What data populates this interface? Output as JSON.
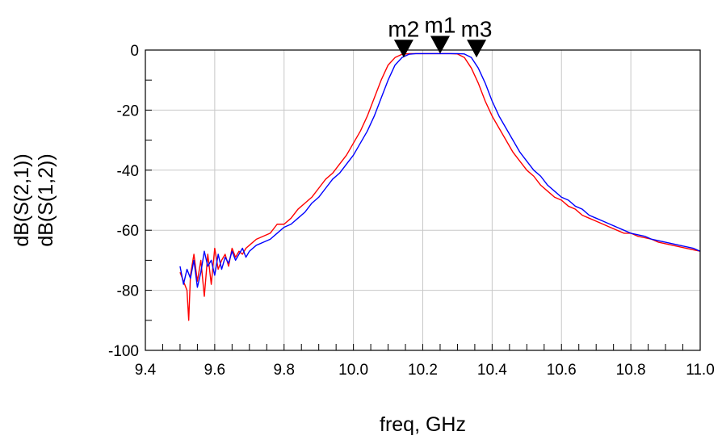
{
  "chart_data": {
    "type": "line",
    "xlabel": "freq, GHz",
    "ylabel_lines": [
      {
        "text": "dB(S(2,1))",
        "color": "#0000ff"
      },
      {
        "text": "dB(S(1,2))",
        "color": "#ff0000"
      }
    ],
    "xlim": [
      9.4,
      11.0
    ],
    "ylim": [
      -100,
      0
    ],
    "x_ticks": [
      9.4,
      9.6,
      9.8,
      10.0,
      10.2,
      10.4,
      10.6,
      10.8,
      11.0
    ],
    "x_tick_labels": [
      "9.4",
      "9.6",
      "9.8",
      "10.0",
      "10.2",
      "10.4",
      "10.6",
      "10.8",
      "11.0"
    ],
    "y_ticks": [
      0,
      -20,
      -40,
      -60,
      -80,
      -100
    ],
    "y_tick_labels": [
      "0",
      "-20",
      "-40",
      "-60",
      "-80",
      "-100"
    ],
    "grid": true,
    "markers": [
      {
        "name": "m2",
        "x": 10.145,
        "y": -2.5
      },
      {
        "name": "m1",
        "x": 10.25,
        "y": -1.2
      },
      {
        "name": "m3",
        "x": 10.355,
        "y": -2.5
      }
    ],
    "series": [
      {
        "name": "dB(S(2,1))",
        "color": "#0000ff",
        "x": [
          9.5,
          9.51,
          9.52,
          9.53,
          9.54,
          9.55,
          9.56,
          9.57,
          9.58,
          9.59,
          9.6,
          9.61,
          9.62,
          9.63,
          9.64,
          9.65,
          9.66,
          9.67,
          9.68,
          9.69,
          9.7,
          9.72,
          9.74,
          9.76,
          9.78,
          9.8,
          9.82,
          9.84,
          9.86,
          9.88,
          9.9,
          9.92,
          9.94,
          9.96,
          9.98,
          10.0,
          10.02,
          10.04,
          10.06,
          10.08,
          10.1,
          10.12,
          10.14,
          10.16,
          10.18,
          10.2,
          10.22,
          10.24,
          10.26,
          10.28,
          10.3,
          10.32,
          10.34,
          10.36,
          10.38,
          10.4,
          10.42,
          10.44,
          10.46,
          10.48,
          10.5,
          10.52,
          10.54,
          10.56,
          10.58,
          10.6,
          10.62,
          10.64,
          10.66,
          10.68,
          10.7,
          10.72,
          10.74,
          10.76,
          10.78,
          10.8,
          10.82,
          10.84,
          10.86,
          10.88,
          10.9,
          10.92,
          10.94,
          10.96,
          10.98,
          11.0
        ],
        "y": [
          -72,
          -78,
          -73,
          -76,
          -70,
          -79,
          -74,
          -67,
          -72,
          -70,
          -75,
          -68,
          -73,
          -69,
          -71,
          -67,
          -70,
          -68,
          -66,
          -69,
          -67,
          -65,
          -64,
          -63,
          -61,
          -59,
          -58,
          -56,
          -54,
          -51,
          -49,
          -46,
          -43,
          -41,
          -38,
          -35,
          -31,
          -27,
          -22,
          -16,
          -10,
          -5,
          -2.5,
          -1.4,
          -1.2,
          -1.2,
          -1.2,
          -1.2,
          -1.2,
          -1.2,
          -1.2,
          -1.3,
          -2.5,
          -6,
          -11,
          -17,
          -22,
          -26,
          -30,
          -34,
          -37,
          -40,
          -42,
          -45,
          -47,
          -49,
          -50,
          -52,
          -53,
          -55,
          -56,
          -57,
          -58,
          -59,
          -60,
          -61,
          -61.5,
          -62,
          -63,
          -63.5,
          -64,
          -64.5,
          -65,
          -65.5,
          -66,
          -67
        ]
      },
      {
        "name": "dB(S(1,2))",
        "color": "#ff0000",
        "x": [
          9.5,
          9.51,
          9.52,
          9.525,
          9.53,
          9.54,
          9.55,
          9.56,
          9.57,
          9.58,
          9.59,
          9.6,
          9.61,
          9.62,
          9.63,
          9.64,
          9.65,
          9.66,
          9.67,
          9.68,
          9.69,
          9.7,
          9.72,
          9.74,
          9.76,
          9.78,
          9.8,
          9.82,
          9.84,
          9.86,
          9.88,
          9.9,
          9.92,
          9.94,
          9.96,
          9.98,
          10.0,
          10.02,
          10.04,
          10.06,
          10.08,
          10.1,
          10.12,
          10.14,
          10.16,
          10.18,
          10.2,
          10.22,
          10.24,
          10.26,
          10.28,
          10.3,
          10.32,
          10.34,
          10.36,
          10.38,
          10.4,
          10.42,
          10.44,
          10.46,
          10.48,
          10.5,
          10.52,
          10.54,
          10.56,
          10.58,
          10.6,
          10.62,
          10.64,
          10.66,
          10.68,
          10.7,
          10.72,
          10.74,
          10.76,
          10.78,
          10.8,
          10.82,
          10.84,
          10.86,
          10.88,
          10.9,
          10.92,
          10.94,
          10.96,
          10.98,
          11.0
        ],
        "y": [
          -74,
          -77,
          -80,
          -90,
          -75,
          -68,
          -77,
          -70,
          -82,
          -68,
          -78,
          -66,
          -73,
          -70,
          -68,
          -72,
          -66,
          -69,
          -67,
          -68,
          -66,
          -65,
          -63,
          -62,
          -61,
          -58,
          -58,
          -56,
          -53,
          -51,
          -49,
          -46,
          -43,
          -41,
          -38,
          -35,
          -31,
          -27,
          -22,
          -16,
          -10,
          -5,
          -2.5,
          -1.4,
          -1.2,
          -1.2,
          -1.2,
          -1.2,
          -1.2,
          -1.2,
          -1.2,
          -1.3,
          -2.5,
          -6,
          -11,
          -17,
          -22,
          -26,
          -30,
          -34,
          -37,
          -40,
          -42,
          -45,
          -47,
          -49,
          -50,
          -52,
          -53,
          -55,
          -56,
          -57,
          -58,
          -59,
          -60,
          -61,
          -61,
          -62,
          -62.5,
          -63,
          -64,
          -64.5,
          -65,
          -65.5,
          -66,
          -66.5,
          -67
        ]
      }
    ]
  }
}
